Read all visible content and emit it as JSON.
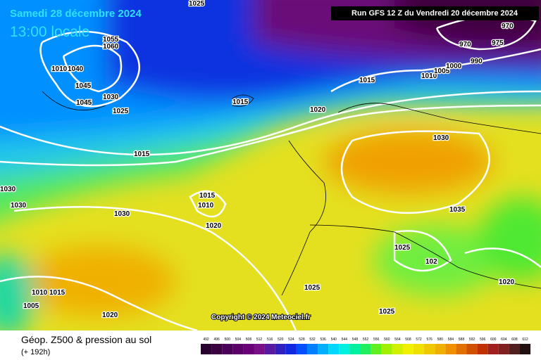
{
  "header": {
    "date": "Samedi 28 décembre 2024",
    "time": "13:00 locale",
    "run": "Run GFS 12 Z du Vendredi 20 décembre 2024"
  },
  "isobar_labels": [
    "1025",
    "1060",
    "1055",
    "1010",
    "1040",
    "1045",
    "1030",
    "1045",
    "1025",
    "1015",
    "1015",
    "1020",
    "1015",
    "1010",
    "1005",
    "1000",
    "990",
    "970",
    "975",
    "970",
    "1030",
    "1035",
    "1030",
    "1030",
    "1030",
    "1015",
    "1010",
    "1020",
    "1025",
    "102",
    "1025",
    "1020",
    "1010",
    "1015",
    "1005",
    "1020",
    "1025"
  ],
  "copyright": "Copyright © 2024 Meteociel.fr",
  "legend": {
    "title": "Géop. Z500 & pression au sol",
    "subtitle": "(+ 192h)",
    "scale": [
      492,
      496,
      500,
      504,
      508,
      512,
      516,
      520,
      524,
      528,
      532,
      536,
      540,
      544,
      548,
      552,
      556,
      560,
      564,
      568,
      572,
      576,
      580,
      584,
      588,
      592,
      596,
      600,
      604,
      608,
      612
    ],
    "colors": [
      "#2a0030",
      "#3a0040",
      "#4a0058",
      "#5a0068",
      "#6a0078",
      "#7a1088",
      "#5a1aa0",
      "#3020c0",
      "#1028e0",
      "#0050ff",
      "#0080ff",
      "#00b0ff",
      "#00d8ff",
      "#00f0e0",
      "#00f0a0",
      "#20f060",
      "#60f020",
      "#a0f000",
      "#d0f000",
      "#f0f000",
      "#f0e000",
      "#f0c800",
      "#f0b000",
      "#f09000",
      "#e07000",
      "#d05000",
      "#c03000",
      "#a02020",
      "#802020",
      "#502020",
      "#201010"
    ]
  }
}
